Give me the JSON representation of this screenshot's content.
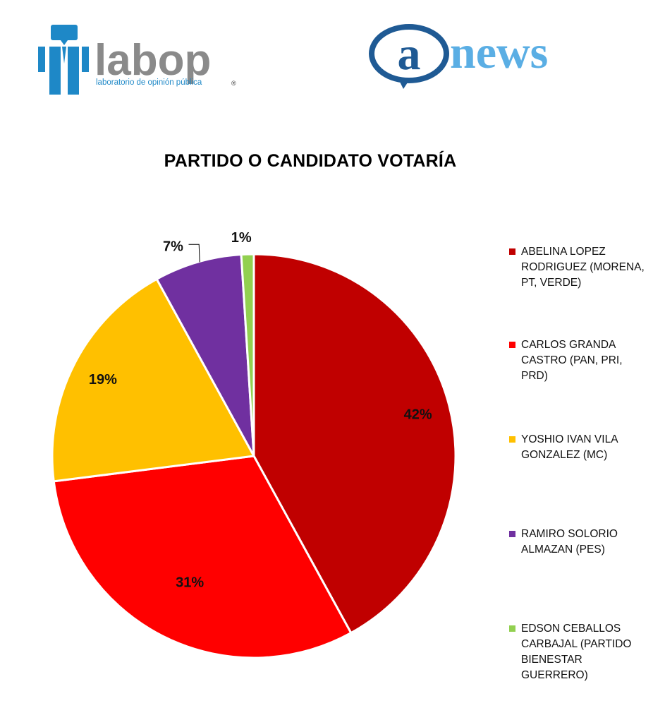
{
  "logos": {
    "labop": {
      "name": "labop",
      "tagline": "laboratorio de opinión pública",
      "mark": "®"
    },
    "anews": {
      "at": "a",
      "name": "news"
    }
  },
  "chart_data": {
    "type": "pie",
    "title": "PARTIDO O CANDIDATO VOTARÍA",
    "slices": [
      {
        "label": "ABELINA LOPEZ RODRIGUEZ (MORENA, PT, VERDE)",
        "value": 42,
        "display": "42%",
        "color": "#c00000"
      },
      {
        "label": "CARLOS GRANDA CASTRO (PAN, PRI, PRD)",
        "value": 31,
        "display": "31%",
        "color": "#ff0000"
      },
      {
        "label": "YOSHIO IVAN VILA GONZALEZ (MC)",
        "value": 19,
        "display": "19%",
        "color": "#ffc000"
      },
      {
        "label": "RAMIRO SOLORIO ALMAZAN (PES)",
        "value": 7,
        "display": "7%",
        "color": "#7030a0"
      },
      {
        "label": "EDSON CEBALLOS CARBAJAL (PARTIDO BIENESTAR GUERRERO)",
        "value": 1,
        "display": "1%",
        "color": "#92d050"
      }
    ],
    "legend_position": "right",
    "start": "top, clockwise"
  }
}
